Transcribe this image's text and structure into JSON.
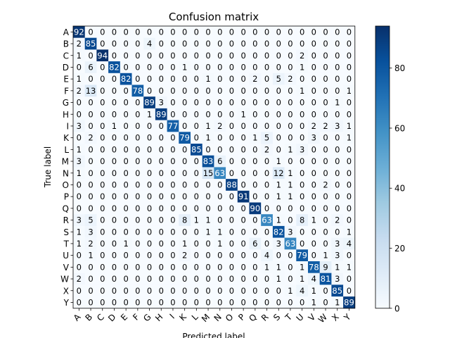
{
  "chart_data": {
    "type": "heatmap",
    "title": "Confusion matrix",
    "xlabel": "Predicted label",
    "ylabel": "True label",
    "labels": [
      "A",
      "B",
      "C",
      "D",
      "E",
      "F",
      "G",
      "H",
      "I",
      "K",
      "L",
      "M",
      "N",
      "O",
      "P",
      "Q",
      "R",
      "S",
      "T",
      "U",
      "V",
      "W",
      "X",
      "Y"
    ],
    "matrix": [
      [
        92,
        0,
        0,
        0,
        0,
        0,
        0,
        0,
        0,
        0,
        0,
        0,
        0,
        0,
        0,
        0,
        0,
        0,
        0,
        0,
        0,
        0,
        0,
        0
      ],
      [
        2,
        85,
        0,
        0,
        0,
        0,
        4,
        0,
        0,
        0,
        0,
        0,
        0,
        0,
        0,
        0,
        0,
        0,
        0,
        0,
        0,
        0,
        0,
        0
      ],
      [
        1,
        0,
        94,
        0,
        0,
        0,
        0,
        0,
        0,
        0,
        0,
        0,
        0,
        0,
        0,
        0,
        0,
        0,
        0,
        2,
        0,
        0,
        0,
        0
      ],
      [
        0,
        6,
        0,
        82,
        0,
        0,
        0,
        0,
        0,
        1,
        0,
        0,
        0,
        0,
        0,
        0,
        0,
        0,
        0,
        1,
        0,
        0,
        0,
        0
      ],
      [
        1,
        0,
        0,
        0,
        82,
        0,
        0,
        0,
        0,
        0,
        0,
        1,
        0,
        0,
        0,
        2,
        0,
        5,
        2,
        0,
        0,
        0,
        0,
        0
      ],
      [
        2,
        13,
        0,
        0,
        0,
        78,
        0,
        0,
        0,
        0,
        0,
        0,
        0,
        0,
        0,
        0,
        0,
        0,
        0,
        1,
        0,
        0,
        0,
        1
      ],
      [
        0,
        0,
        0,
        0,
        0,
        0,
        89,
        3,
        0,
        0,
        0,
        0,
        0,
        0,
        0,
        0,
        0,
        0,
        0,
        0,
        0,
        0,
        1,
        0
      ],
      [
        0,
        0,
        0,
        0,
        0,
        0,
        1,
        89,
        0,
        0,
        0,
        0,
        0,
        0,
        1,
        0,
        0,
        0,
        0,
        0,
        0,
        0,
        0,
        0
      ],
      [
        3,
        0,
        0,
        1,
        0,
        0,
        0,
        0,
        77,
        0,
        0,
        1,
        2,
        0,
        0,
        0,
        0,
        0,
        0,
        0,
        2,
        2,
        3,
        1
      ],
      [
        0,
        2,
        0,
        0,
        0,
        0,
        0,
        0,
        0,
        79,
        0,
        1,
        0,
        0,
        0,
        1,
        5,
        0,
        0,
        0,
        3,
        0,
        0,
        1
      ],
      [
        1,
        0,
        0,
        0,
        0,
        0,
        0,
        0,
        0,
        0,
        85,
        0,
        0,
        0,
        0,
        0,
        2,
        0,
        1,
        3,
        0,
        0,
        0,
        0
      ],
      [
        3,
        0,
        0,
        0,
        0,
        0,
        0,
        0,
        0,
        0,
        0,
        83,
        6,
        0,
        0,
        0,
        0,
        1,
        0,
        0,
        0,
        0,
        0,
        0
      ],
      [
        1,
        0,
        0,
        0,
        0,
        0,
        0,
        0,
        0,
        0,
        0,
        15,
        63,
        0,
        0,
        0,
        0,
        12,
        1,
        0,
        0,
        0,
        0,
        0
      ],
      [
        0,
        0,
        0,
        0,
        0,
        0,
        0,
        0,
        0,
        0,
        0,
        0,
        0,
        88,
        0,
        0,
        0,
        1,
        1,
        0,
        0,
        2,
        0,
        0
      ],
      [
        0,
        0,
        0,
        0,
        0,
        0,
        0,
        0,
        0,
        0,
        0,
        0,
        0,
        0,
        91,
        0,
        0,
        1,
        1,
        0,
        0,
        0,
        0,
        0
      ],
      [
        0,
        0,
        0,
        0,
        0,
        0,
        0,
        0,
        0,
        0,
        0,
        0,
        0,
        0,
        0,
        90,
        0,
        0,
        0,
        0,
        0,
        0,
        0,
        0
      ],
      [
        3,
        5,
        0,
        0,
        0,
        0,
        0,
        0,
        0,
        8,
        1,
        1,
        0,
        0,
        0,
        0,
        63,
        1,
        0,
        8,
        1,
        0,
        2,
        0
      ],
      [
        1,
        3,
        0,
        0,
        0,
        0,
        0,
        0,
        0,
        0,
        0,
        1,
        1,
        0,
        0,
        0,
        0,
        82,
        3,
        0,
        0,
        0,
        0,
        1
      ],
      [
        1,
        2,
        0,
        0,
        1,
        0,
        0,
        0,
        0,
        1,
        0,
        0,
        1,
        0,
        0,
        6,
        0,
        3,
        63,
        0,
        0,
        0,
        3,
        4
      ],
      [
        0,
        1,
        0,
        0,
        0,
        0,
        0,
        0,
        0,
        2,
        0,
        0,
        0,
        0,
        0,
        0,
        4,
        0,
        0,
        79,
        0,
        1,
        3,
        0
      ],
      [
        0,
        0,
        0,
        0,
        0,
        0,
        0,
        0,
        0,
        0,
        0,
        0,
        0,
        0,
        0,
        0,
        1,
        1,
        0,
        1,
        78,
        9,
        1,
        1
      ],
      [
        2,
        0,
        0,
        0,
        0,
        0,
        0,
        0,
        0,
        0,
        0,
        0,
        0,
        0,
        0,
        0,
        0,
        1,
        0,
        1,
        4,
        81,
        3,
        0
      ],
      [
        0,
        0,
        0,
        0,
        0,
        0,
        0,
        0,
        0,
        0,
        0,
        0,
        0,
        0,
        0,
        0,
        0,
        0,
        1,
        4,
        1,
        0,
        85,
        0
      ],
      [
        0,
        0,
        0,
        0,
        0,
        0,
        0,
        0,
        0,
        0,
        0,
        0,
        0,
        0,
        0,
        0,
        0,
        0,
        0,
        0,
        1,
        0,
        1,
        89
      ]
    ],
    "colormap": "Blues",
    "colorbar": {
      "min": 0,
      "max": 94,
      "ticks": [
        0,
        20,
        40,
        60,
        80
      ]
    },
    "grid": false
  }
}
